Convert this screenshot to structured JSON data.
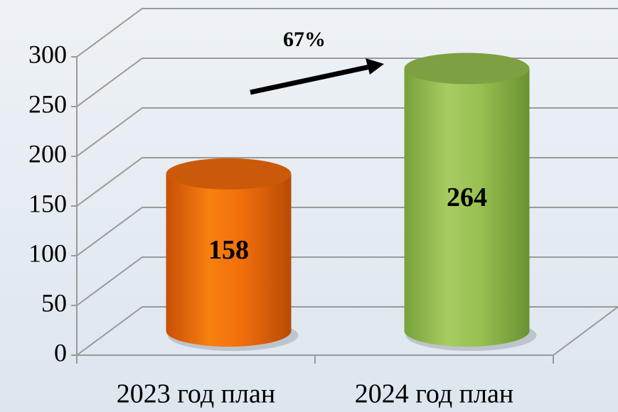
{
  "chart_data": {
    "type": "bar3d",
    "categories": [
      "2023 год план",
      "2024 год план"
    ],
    "values": [
      158,
      264
    ],
    "colors": [
      "#ee6a0c",
      "#94bb4e"
    ],
    "ylim": [
      0,
      300
    ],
    "yticks": [
      0,
      50,
      100,
      150,
      200,
      250,
      300
    ],
    "grid": true,
    "annotation": "67%"
  }
}
